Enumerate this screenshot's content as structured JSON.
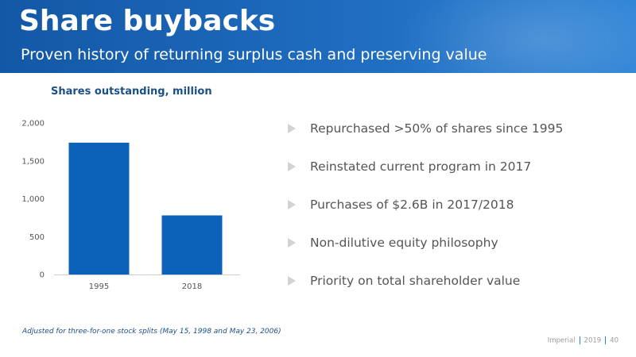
{
  "header": {
    "title": "Share buybacks",
    "subtitle": "Proven history of returning surplus cash and preserving value"
  },
  "chart_data": {
    "type": "bar",
    "title": "Shares outstanding, million",
    "categories": [
      "1995",
      "2018"
    ],
    "values": [
      1740,
      780
    ],
    "ylim": [
      0,
      2000
    ],
    "yticks": [
      0,
      500,
      1000,
      1500,
      2000
    ],
    "ytick_labels": [
      "0",
      "500",
      "1,000",
      "1,500",
      "2,000"
    ],
    "xlabel": "",
    "ylabel": "",
    "grid": false,
    "bar_color": "#0b62b8"
  },
  "bullets": [
    "Repurchased >50% of shares since 1995",
    "Reinstated current program in 2017",
    "Purchases of $2.6B in 2017/2018",
    "Non-dilutive equity philosophy",
    "Priority on total shareholder value"
  ],
  "footnote": "Adjusted for three-for-one stock splits (May 15, 1998 and May 23, 2006)",
  "footer": {
    "company": "Imperial",
    "year": "2019",
    "page": "40"
  },
  "colors": {
    "header_blue": "#1f6cc0",
    "title_navy": "#1c4f86",
    "bullet_arrow": "#d3d3d3"
  }
}
